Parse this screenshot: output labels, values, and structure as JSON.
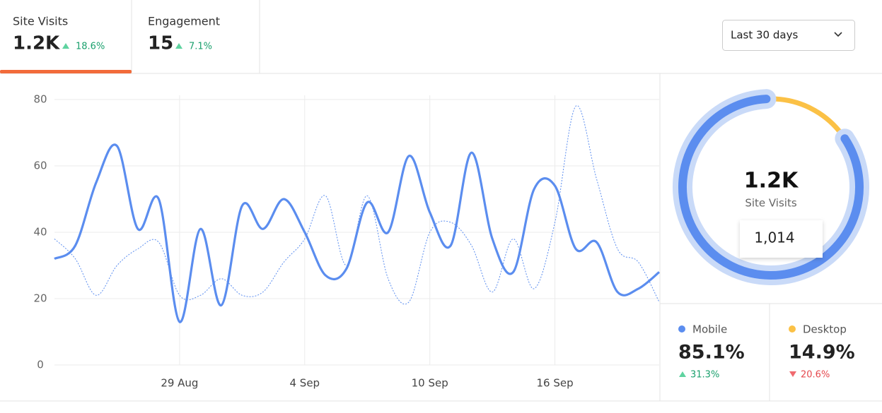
{
  "tabs": [
    {
      "label": "Site Visits",
      "value": "1.2K",
      "change": "18.6%",
      "trend": "up"
    },
    {
      "label": "Engagement",
      "value": "15",
      "change": "7.1%",
      "trend": "up"
    }
  ],
  "date_range": "Last 30 days",
  "chart_data": [
    {
      "type": "line",
      "categories": [
        null,
        null,
        null,
        null,
        null,
        null,
        "29 Aug",
        null,
        null,
        null,
        null,
        null,
        "4 Sep",
        null,
        null,
        null,
        null,
        null,
        "10 Sep",
        null,
        null,
        null,
        null,
        null,
        "16 Sep",
        null,
        null,
        null,
        null,
        null
      ],
      "series": [
        {
          "color": "#5b8def",
          "style": "solid",
          "values": [
            32,
            36,
            55,
            66,
            41,
            50,
            13,
            41,
            18,
            48,
            41,
            50,
            40,
            27,
            29,
            49,
            40,
            63,
            46,
            36,
            64,
            38,
            28,
            53,
            54,
            35,
            37,
            22,
            23,
            28
          ]
        },
        {
          "color": "#5b8def",
          "style": "dotted",
          "values": [
            38,
            32,
            21,
            30,
            35,
            37,
            21,
            21,
            26,
            21,
            22,
            31,
            38,
            51,
            30,
            51,
            26,
            19,
            40,
            43,
            36,
            22,
            38,
            23,
            43,
            78,
            56,
            35,
            31,
            19
          ]
        }
      ],
      "ylim": [
        0,
        80
      ],
      "yticks": [
        0,
        20,
        40,
        60,
        80
      ],
      "grid": true
    },
    {
      "type": "donut",
      "center_value": "1.2K",
      "center_label": "Site Visits",
      "tooltip": "1,014",
      "categories": [
        "Mobile",
        "Desktop"
      ],
      "values": [
        85.1,
        14.9
      ],
      "value_labels": [
        "85.1%",
        "14.9%"
      ],
      "colors": [
        "#5b8def",
        "#fbc146"
      ],
      "changes": [
        "31.3%",
        "20.6%"
      ],
      "trend": [
        "up",
        "down"
      ]
    }
  ]
}
